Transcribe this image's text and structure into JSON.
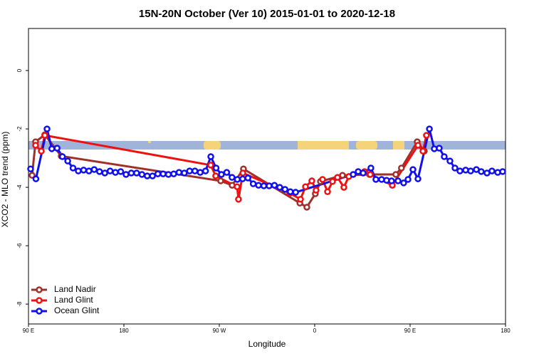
{
  "chart_data": {
    "type": "line",
    "title": "15N-20N October (Ver 10)   2015-01-01 to 2020-12-18",
    "xlabel": "Longitude",
    "ylabel": "XCO2 - MLO trend (ppm)",
    "xlim": [
      90,
      540
    ],
    "ylim": [
      -8.68,
      1.44
    ],
    "xticks": [
      {
        "value": 90,
        "label": "90 E"
      },
      {
        "value": 180,
        "label": "180"
      },
      {
        "value": 270,
        "label": "90 W"
      },
      {
        "value": 360,
        "label": "0"
      },
      {
        "value": 450,
        "label": "90 E"
      },
      {
        "value": 540,
        "label": "180"
      }
    ],
    "yticks": [
      0,
      -2,
      -4,
      -6,
      -8
    ],
    "legend": "bottom-left",
    "series": [
      {
        "name": "Land Nadir",
        "color": "#a0302c",
        "x": [
          93.4,
          96.7,
          105.4,
          120.9,
          271.3,
          282.1,
          292.8,
          346,
          352.6,
          360.6,
          365.4,
          386.2,
          411.7,
          436.5,
          441.8,
          456.7,
          463.4
        ],
        "values": [
          -3.59,
          -2.44,
          -2.2,
          -2.93,
          -3.78,
          -3.93,
          -3.37,
          -4.54,
          -4.68,
          -4.22,
          -3.8,
          -3.59,
          -3.56,
          -3.56,
          -3.34,
          -2.44,
          -2.76
        ]
      },
      {
        "name": "Land Glint",
        "color": "#ee1111",
        "x": [
          96.7,
          102.1,
          105.4,
          261.9,
          266.6,
          286.8,
          288.1,
          292.2,
          336.5,
          346.6,
          351.3,
          357.3,
          361.3,
          367.4,
          372.1,
          376.8,
          381.5,
          387.5,
          392.2,
          407,
          412.4,
          433.2,
          457.4,
          462.1,
          465.4
        ],
        "values": [
          -2.56,
          -2.76,
          -2.22,
          -3.24,
          -3.61,
          -3.98,
          -4.41,
          -3.51,
          -4.2,
          -4.41,
          -3.98,
          -3.78,
          -4.1,
          -3.73,
          -4.15,
          -3.8,
          -3.66,
          -4.0,
          -3.63,
          -3.46,
          -3.56,
          -3.93,
          -2.56,
          -2.76,
          -2.22
        ]
      },
      {
        "name": "Ocean Glint",
        "color": "#1010ee",
        "x": [
          92,
          97,
          107.5,
          112,
          117,
          122,
          127,
          132,
          137,
          142,
          147,
          152,
          157,
          162,
          167,
          172,
          177,
          182,
          187,
          192,
          197,
          202,
          207,
          212,
          217,
          222,
          227,
          232,
          237,
          242,
          247,
          252,
          257,
          262,
          267,
          272,
          277,
          282,
          287,
          292,
          297,
          302,
          307,
          312,
          317,
          322,
          327,
          332,
          337,
          342,
          396.3,
          401,
          405.7,
          413,
          417.7,
          423.1,
          427.8,
          432.5,
          438.6,
          443.9,
          448,
          452.7,
          457.4,
          468.2,
          472.8,
          477.5,
          482.2,
          487.6,
          492.3,
          497,
          502.4,
          507.1,
          512.5,
          517.1,
          522.5,
          527.2,
          532.6,
          537.3
        ],
        "values": [
          -3.37,
          -3.71,
          -2.0,
          -2.68,
          -2.66,
          -2.95,
          -3.1,
          -3.34,
          -3.44,
          -3.41,
          -3.44,
          -3.39,
          -3.46,
          -3.51,
          -3.44,
          -3.49,
          -3.46,
          -3.56,
          -3.51,
          -3.51,
          -3.56,
          -3.61,
          -3.61,
          -3.54,
          -3.54,
          -3.56,
          -3.54,
          -3.49,
          -3.51,
          -3.44,
          -3.44,
          -3.49,
          -3.44,
          -2.95,
          -3.34,
          -3.56,
          -3.49,
          -3.66,
          -3.73,
          -3.71,
          -3.68,
          -3.88,
          -3.93,
          -3.95,
          -3.95,
          -3.93,
          -4.0,
          -4.07,
          -4.15,
          -4.17,
          -3.56,
          -3.46,
          -3.51,
          -3.34,
          -3.73,
          -3.73,
          -3.76,
          -3.78,
          -3.78,
          -3.85,
          -3.73,
          -3.39,
          -3.71,
          -2.0,
          -2.68,
          -2.66,
          -2.95,
          -3.1,
          -3.34,
          -3.44,
          -3.41,
          -3.44,
          -3.39,
          -3.46,
          -3.51,
          -3.44,
          -3.49,
          -3.46
        ]
      }
    ]
  }
}
